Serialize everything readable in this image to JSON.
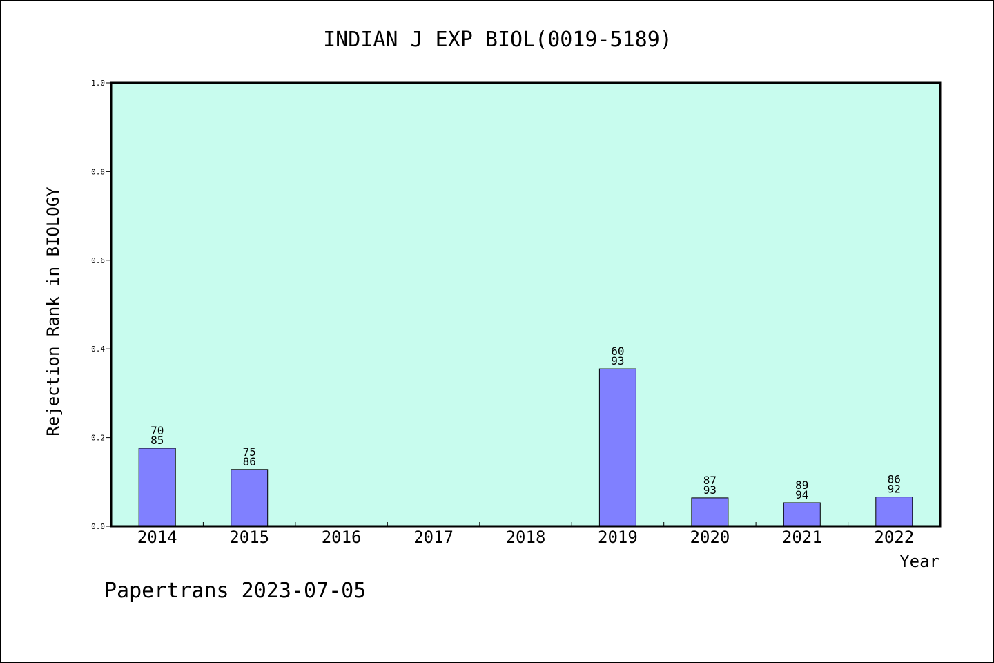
{
  "chart_data": {
    "type": "bar",
    "title": "INDIAN J EXP BIOL(0019-5189)",
    "xlabel": "Year",
    "ylabel": "Rejection Rank in BIOLOGY",
    "ylim": [
      0,
      1.0
    ],
    "yticks": [
      "0.0",
      "0.2",
      "0.4",
      "0.6",
      "0.8",
      "1.0"
    ],
    "categories": [
      "2014",
      "2015",
      "2016",
      "2017",
      "2018",
      "2019",
      "2020",
      "2021",
      "2022"
    ],
    "values": [
      0.176,
      0.128,
      0,
      0,
      0,
      0.355,
      0.064,
      0.053,
      0.066
    ],
    "bar_labels": [
      [
        "70",
        "85"
      ],
      [
        "75",
        "86"
      ],
      null,
      null,
      null,
      [
        "60",
        "93"
      ],
      [
        "87",
        "93"
      ],
      [
        "89",
        "94"
      ],
      [
        "86",
        "92"
      ]
    ],
    "grid": false,
    "colors": {
      "plot_background": "#c8fcee",
      "bar_fill": "#8080ff",
      "bar_stroke": "#000000",
      "axis": "#000000"
    }
  },
  "footer": {
    "text": "Papertrans 2023-07-05"
  }
}
